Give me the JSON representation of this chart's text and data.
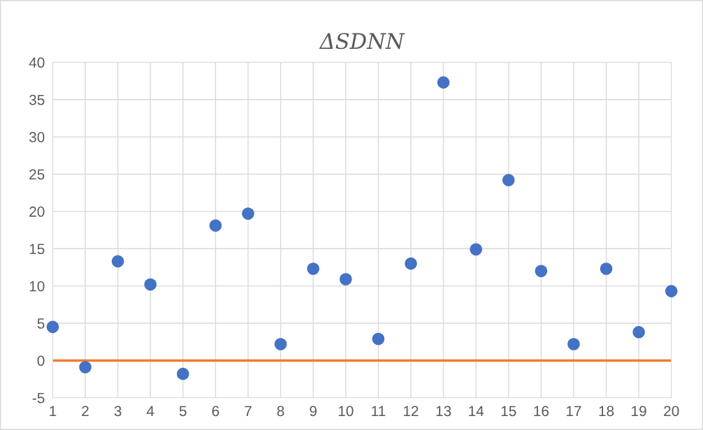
{
  "chart_data": {
    "type": "scatter",
    "title": "ΔSDNN",
    "x": [
      1,
      2,
      3,
      4,
      5,
      6,
      7,
      8,
      9,
      10,
      11,
      12,
      13,
      14,
      15,
      16,
      17,
      18,
      19,
      20
    ],
    "series": [
      {
        "color": "#4472c4",
        "values": [
          4.5,
          -0.9,
          13.3,
          10.2,
          -1.8,
          18.1,
          19.7,
          2.2,
          12.3,
          10.9,
          2.9,
          13.0,
          37.3,
          14.9,
          24.2,
          12.0,
          2.2,
          12.3,
          3.8,
          9.3
        ]
      }
    ],
    "xlim": [
      1,
      20
    ],
    "xticks": [
      1,
      2,
      3,
      4,
      5,
      6,
      7,
      8,
      9,
      10,
      11,
      12,
      13,
      14,
      15,
      16,
      17,
      18,
      19,
      20
    ],
    "ylim": [
      -5,
      40
    ],
    "yticks": [
      -5,
      0,
      5,
      10,
      15,
      20,
      25,
      30,
      35,
      40
    ],
    "ref_lines": [
      {
        "axis": "y",
        "value": 0,
        "color": "#ed7d31",
        "line_style": "solid"
      }
    ],
    "grid": true,
    "marker": "circle",
    "legend": false
  }
}
